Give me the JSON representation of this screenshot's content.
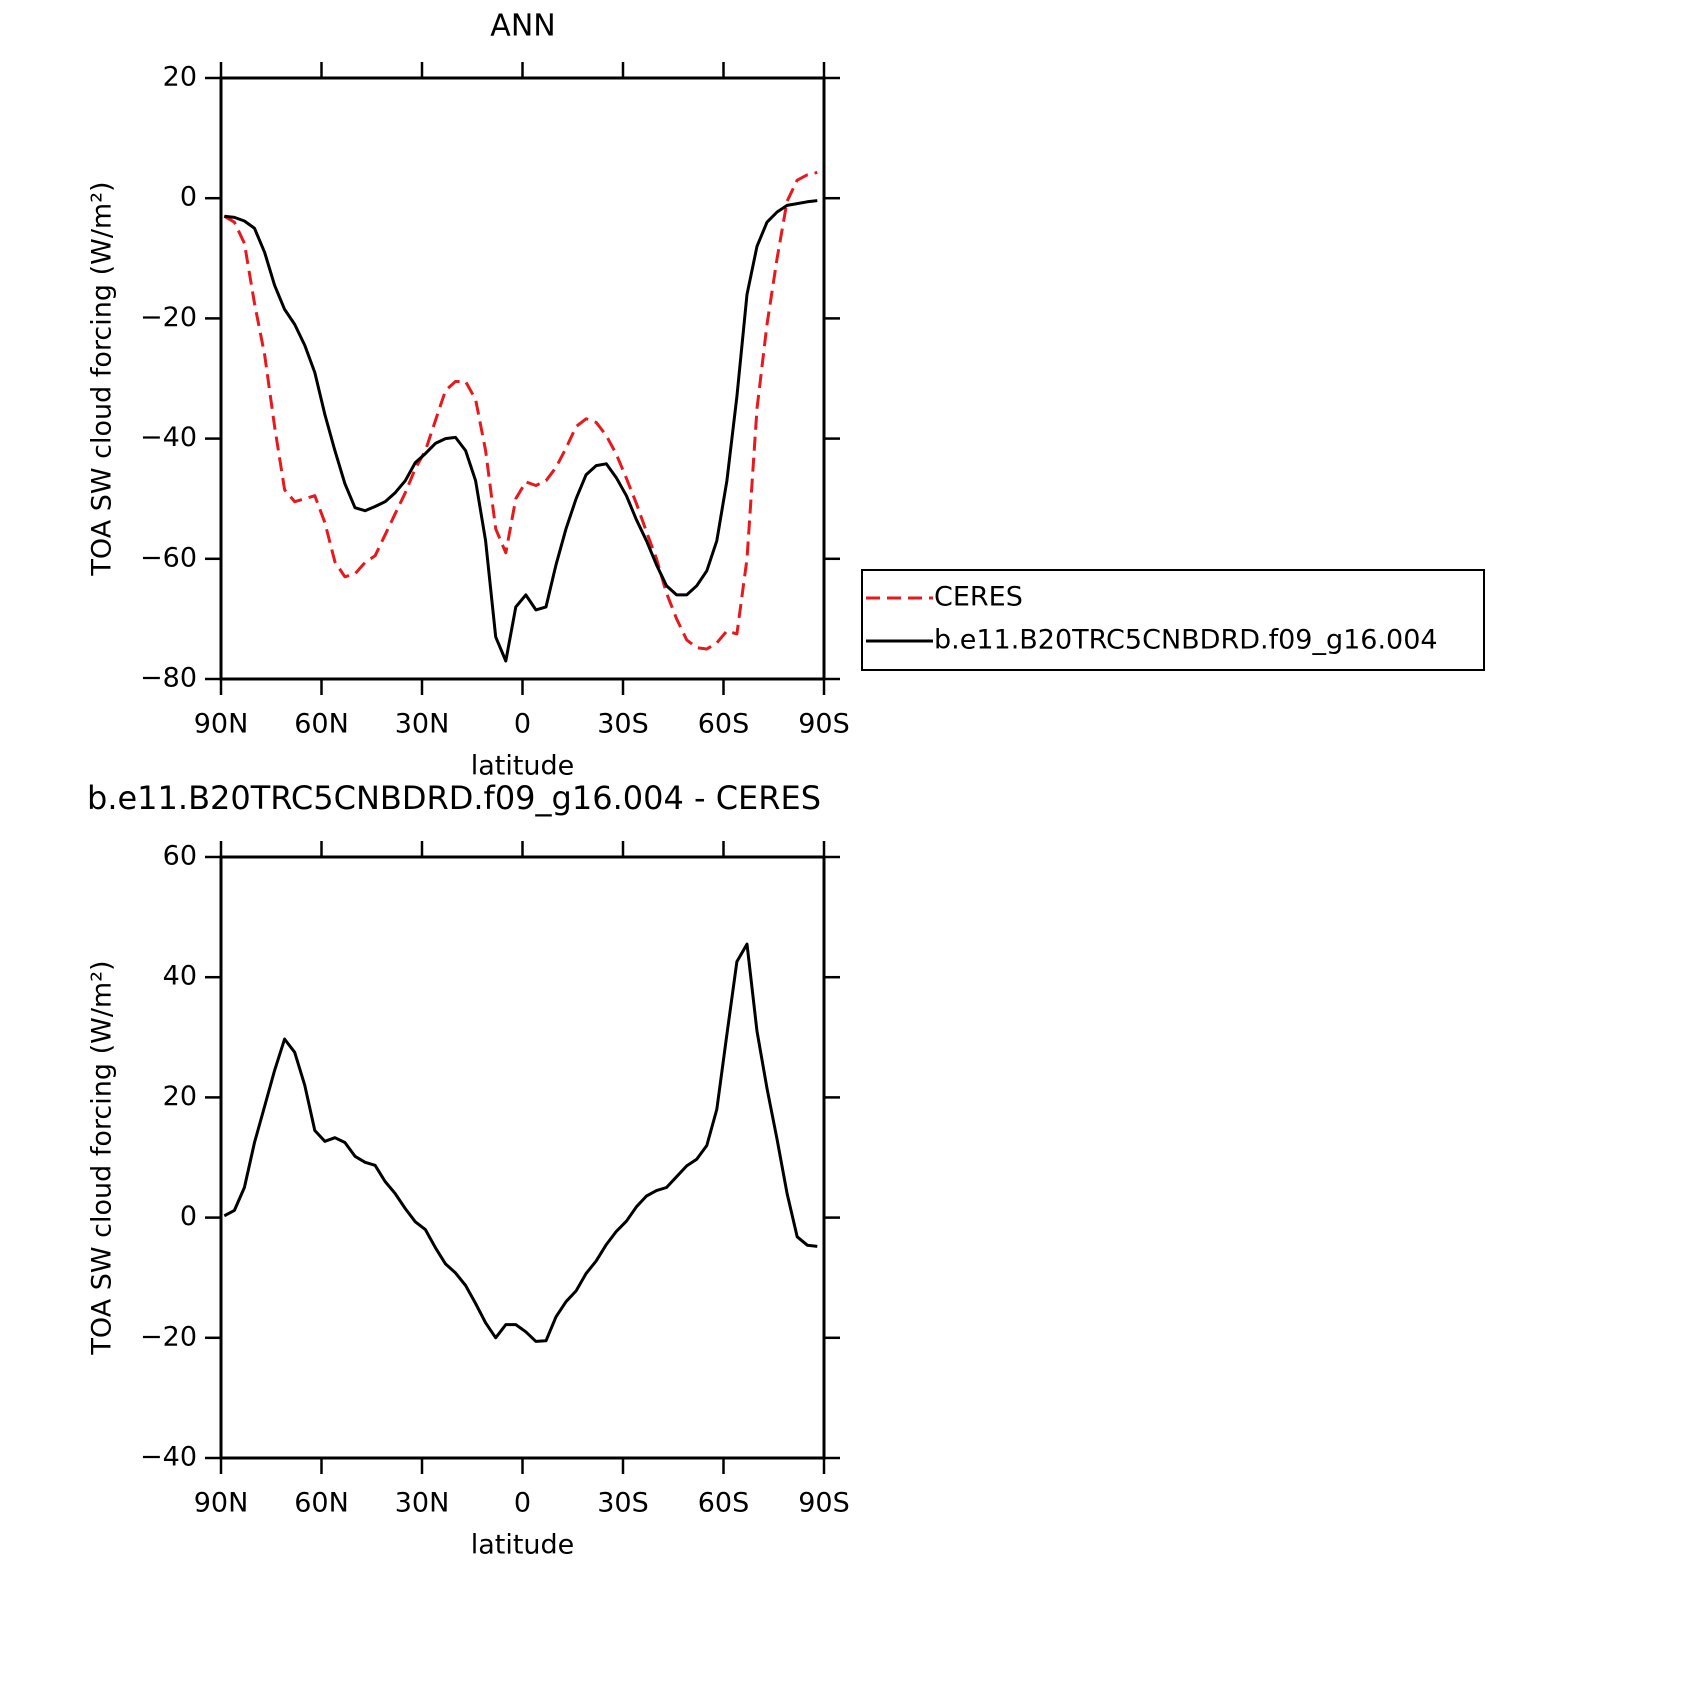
{
  "chart_data": [
    {
      "type": "line",
      "title": "ANN",
      "xlabel": "latitude",
      "ylabel": "TOA SW cloud forcing (W/m²)",
      "x": [
        89,
        86,
        83,
        80,
        77,
        74,
        71,
        68,
        65,
        62,
        59,
        56,
        53,
        50,
        47,
        44,
        41,
        38,
        35,
        32,
        29,
        26,
        23,
        20,
        17,
        14,
        11,
        8,
        5,
        2,
        -1,
        -4,
        -7,
        -10,
        -13,
        -16,
        -19,
        -22,
        -25,
        -28,
        -31,
        -34,
        -37,
        -40,
        -43,
        -46,
        -49,
        -52,
        -55,
        -58,
        -61,
        -64,
        -67,
        -70,
        -73,
        -76,
        -79,
        -82,
        -85,
        -88
      ],
      "xlim": [
        90,
        -90
      ],
      "xticks": [
        {
          "value": 90,
          "label": "90N"
        },
        {
          "value": 60,
          "label": "60N"
        },
        {
          "value": 30,
          "label": "30N"
        },
        0,
        {
          "value": -30,
          "label": "30S"
        },
        {
          "value": -60,
          "label": "60S"
        },
        {
          "value": -90,
          "label": "90S"
        }
      ],
      "ylim": [
        -80,
        20
      ],
      "yticks": [
        {
          "value": -80,
          "label": "−80"
        },
        {
          "value": -60,
          "label": "−60"
        },
        {
          "value": -40,
          "label": "−40"
        },
        {
          "value": -20,
          "label": "−20"
        },
        0,
        20
      ],
      "legend": "right",
      "series": [
        {
          "name": "CERES",
          "color": "#e8191c",
          "dash": true,
          "values": [
            -3,
            -4,
            -7.5,
            -17.5,
            -26,
            -38,
            -48.5,
            -50.5,
            -50,
            -49.5,
            -54,
            -60.5,
            -63,
            -62.5,
            -60.6,
            -59.5,
            -56,
            -52.5,
            -49,
            -45,
            -42,
            -37,
            -32,
            -30.5,
            -30.5,
            -33.5,
            -42,
            -55,
            -59,
            -50,
            -47.2,
            -47.8,
            -47,
            -44.8,
            -41.6,
            -38,
            -36.7,
            -37.3,
            -39.5,
            -42.6,
            -46.6,
            -50.8,
            -55.5,
            -60,
            -65.7,
            -70,
            -73.5,
            -74.8,
            -75,
            -74,
            -72,
            -72.5,
            -60,
            -35,
            -21,
            -10,
            -0.5,
            3,
            3.9,
            4.3
          ]
        },
        {
          "name": "b.e11.B20TRC5CNBDRD.f09_g16.004",
          "color": "#000000",
          "dash": false,
          "values": [
            -3,
            -3.2,
            -3.8,
            -5,
            -9,
            -14.5,
            -18.5,
            -21,
            -24.5,
            -29,
            -36,
            -42,
            -47.5,
            -51.5,
            -52,
            -51.3,
            -50.5,
            -49,
            -47,
            -44,
            -42.5,
            -40.8,
            -40,
            -39.8,
            -42,
            -47,
            -57,
            -73,
            -77,
            -68,
            -66,
            -68.5,
            -68,
            -61,
            -55,
            -50,
            -46,
            -44.5,
            -44.2,
            -46.5,
            -49.5,
            -53.5,
            -57,
            -61,
            -64.5,
            -66,
            -66,
            -64.5,
            -62,
            -57,
            -47,
            -33,
            -16,
            -8,
            -4,
            -2.3,
            -1.2,
            -0.9,
            -0.6,
            -0.4
          ]
        }
      ]
    },
    {
      "type": "line",
      "title": "b.e11.B20TRC5CNBDRD.f09_g16.004 - CERES",
      "xlabel": "latitude",
      "ylabel": "TOA SW cloud forcing (W/m²)",
      "x": [
        89,
        86,
        83,
        80,
        77,
        74,
        71,
        68,
        65,
        62,
        59,
        56,
        53,
        50,
        47,
        44,
        41,
        38,
        35,
        32,
        29,
        26,
        23,
        20,
        17,
        14,
        11,
        8,
        5,
        2,
        -1,
        -4,
        -7,
        -10,
        -13,
        -16,
        -19,
        -22,
        -25,
        -28,
        -31,
        -34,
        -37,
        -40,
        -43,
        -46,
        -49,
        -52,
        -55,
        -58,
        -61,
        -64,
        -67,
        -70,
        -73,
        -76,
        -79,
        -82,
        -85,
        -88
      ],
      "xlim": [
        90,
        -90
      ],
      "xticks": [
        {
          "value": 90,
          "label": "90N"
        },
        {
          "value": 60,
          "label": "60N"
        },
        {
          "value": 30,
          "label": "30N"
        },
        0,
        {
          "value": -30,
          "label": "30S"
        },
        {
          "value": -60,
          "label": "60S"
        },
        {
          "value": -90,
          "label": "90S"
        }
      ],
      "ylim": [
        -40,
        60
      ],
      "yticks": [
        {
          "value": -40,
          "label": "−40"
        },
        {
          "value": -20,
          "label": "−20"
        },
        0,
        20,
        40,
        60
      ],
      "series": [
        {
          "color": "#000000",
          "dash": false,
          "values": [
            0.3,
            1.2,
            5,
            12.5,
            18.5,
            24.5,
            29.7,
            27.5,
            22,
            14.5,
            12.7,
            13.3,
            12.5,
            10.2,
            9.2,
            8.7,
            6,
            4,
            1.5,
            -0.7,
            -2,
            -5,
            -7.7,
            -9.2,
            -11.3,
            -14.3,
            -17.5,
            -20,
            -17.8,
            -17.8,
            -19,
            -20.6,
            -20.5,
            -16.5,
            -14,
            -12.2,
            -9.3,
            -7.2,
            -4.5,
            -2.3,
            -0.6,
            1.8,
            3.6,
            4.5,
            5,
            6.8,
            8.6,
            9.7,
            12,
            18,
            30.5,
            42.6,
            45.5,
            31,
            21.5,
            13,
            4,
            -3.2,
            -4.6,
            -4.8
          ]
        }
      ]
    }
  ]
}
